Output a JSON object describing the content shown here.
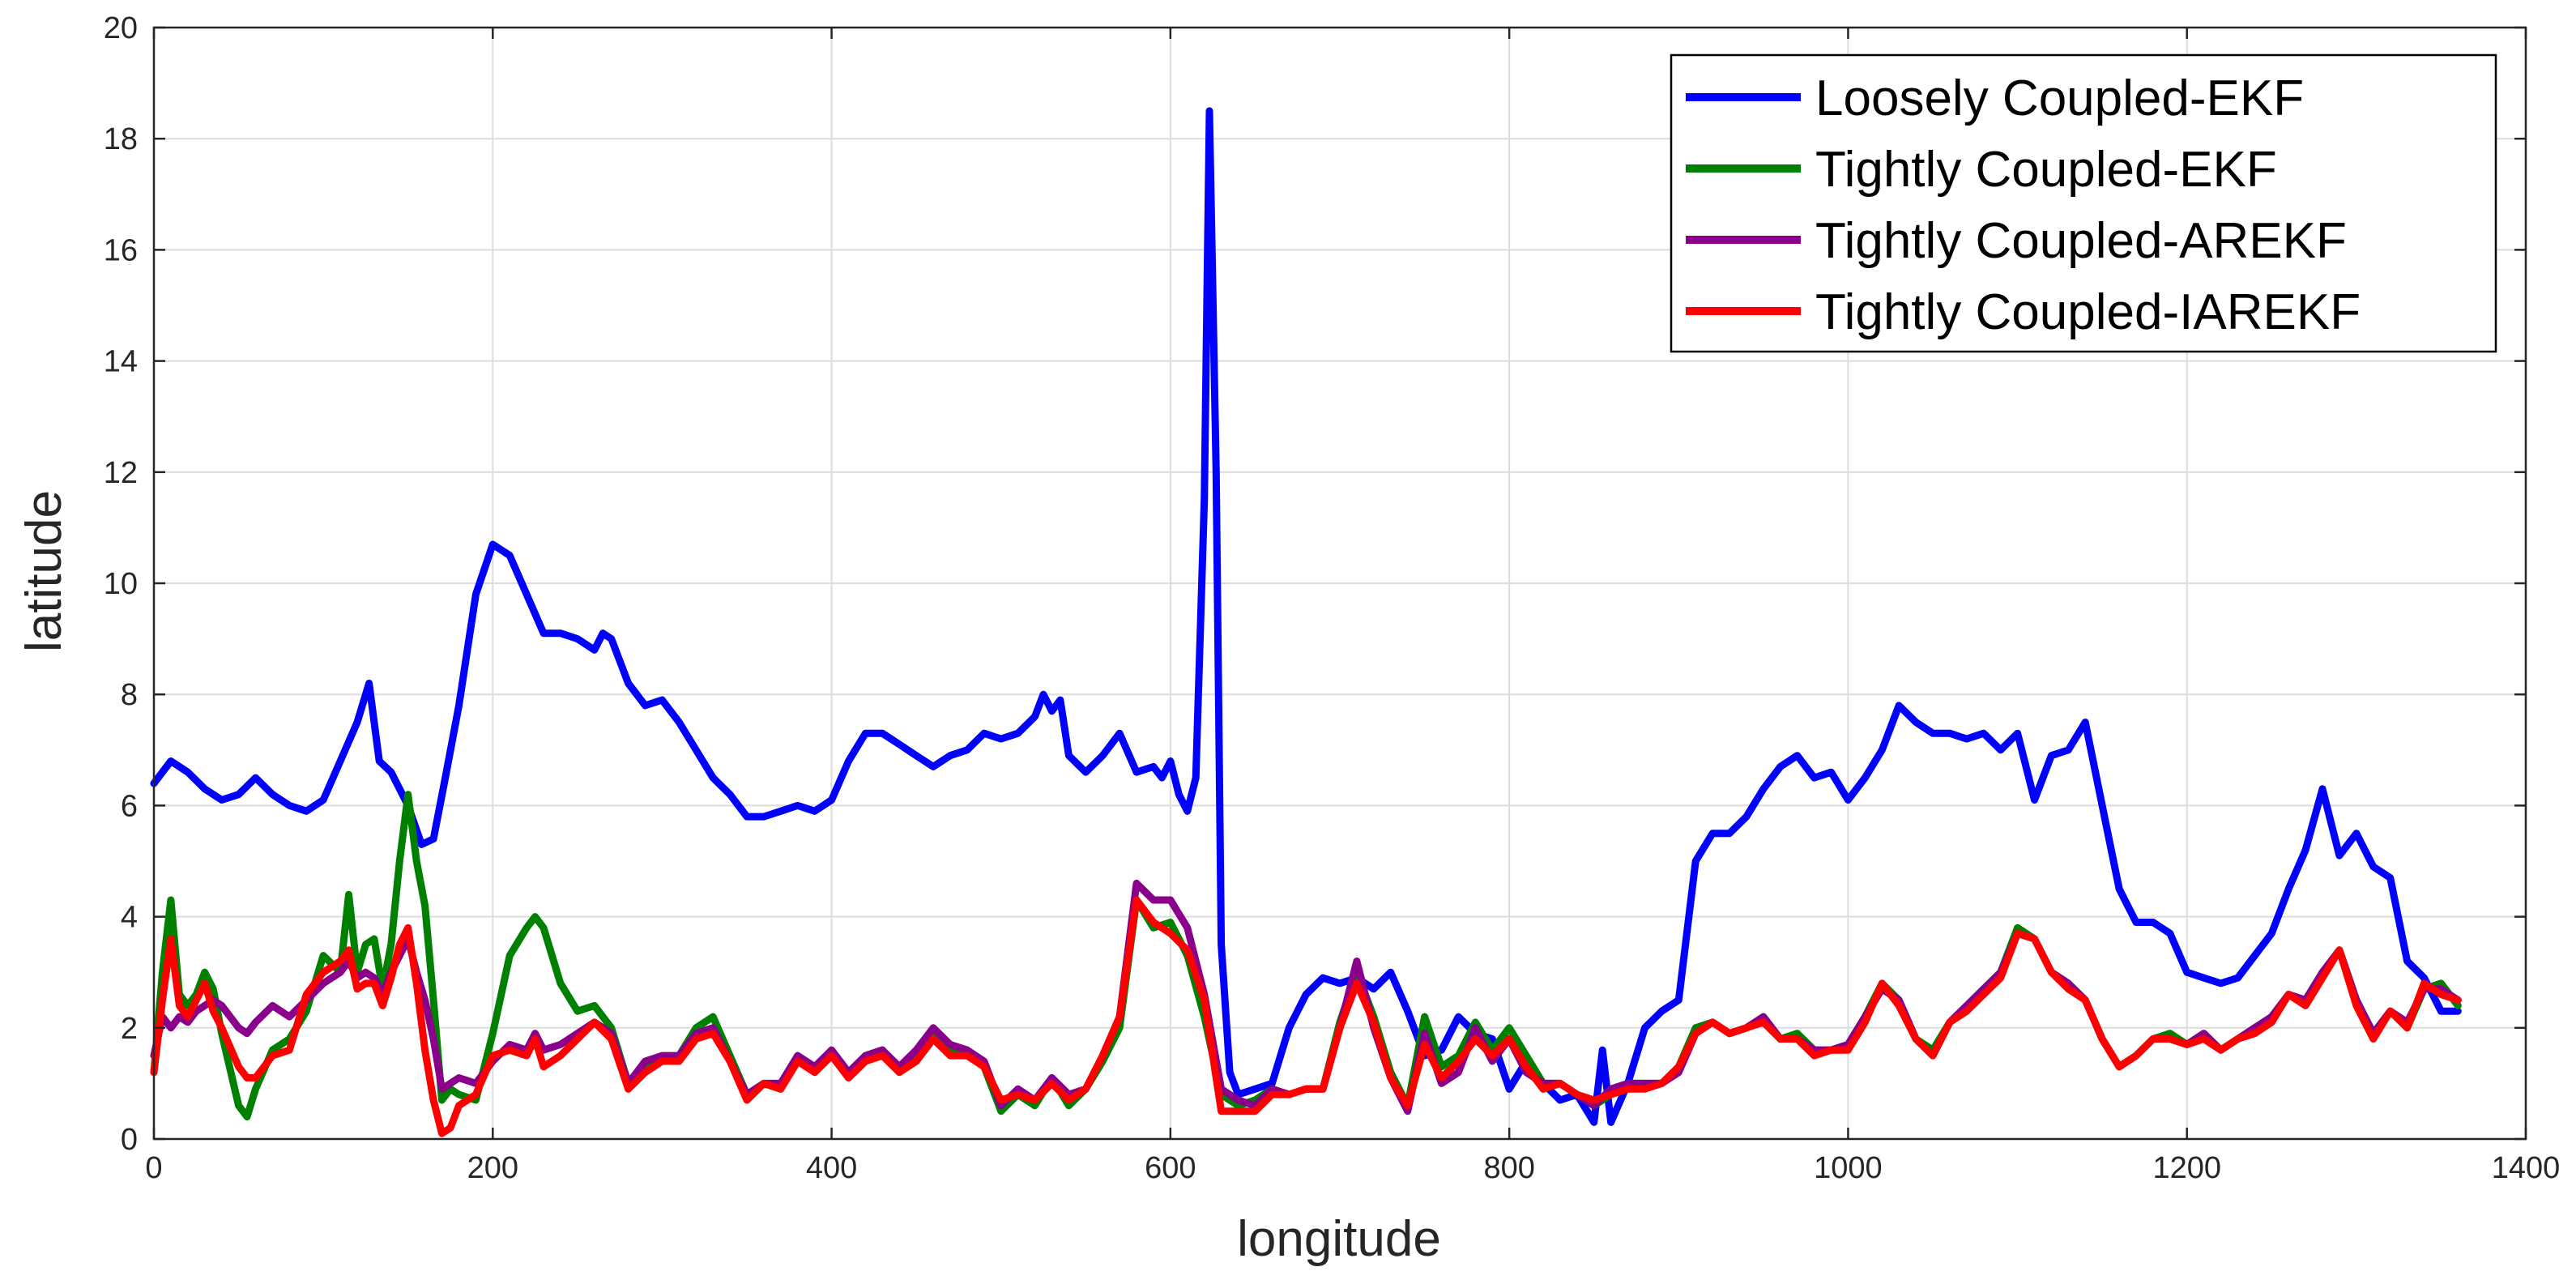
{
  "chart_data": {
    "type": "line",
    "title": "",
    "xlabel": "longitude",
    "ylabel": "latitude",
    "xlim": [
      0,
      1400
    ],
    "ylim": [
      0,
      20
    ],
    "xticks": [
      0,
      200,
      400,
      600,
      800,
      1000,
      1200,
      1400
    ],
    "yticks": [
      0,
      2,
      4,
      6,
      8,
      10,
      12,
      14,
      16,
      18,
      20
    ],
    "xtick_labels": [
      "0",
      "200",
      "400",
      "600",
      "800",
      "1000",
      "1200",
      "1400"
    ],
    "ytick_labels": [
      "0",
      "2",
      "4",
      "6",
      "8",
      "10",
      "12",
      "14",
      "16",
      "18",
      "20"
    ],
    "grid": true,
    "legend_position": "top-right",
    "series": [
      {
        "name": "Loosely Coupled-EKF",
        "color": "#0000ff",
        "x": [
          0,
          10,
          20,
          30,
          40,
          50,
          60,
          70,
          80,
          90,
          100,
          110,
          120,
          127,
          133,
          140,
          150,
          158,
          165,
          172,
          180,
          190,
          200,
          210,
          220,
          230,
          240,
          250,
          260,
          265,
          270,
          280,
          290,
          300,
          310,
          320,
          330,
          340,
          350,
          360,
          370,
          380,
          390,
          400,
          410,
          420,
          430,
          440,
          450,
          460,
          470,
          480,
          490,
          500,
          510,
          520,
          525,
          530,
          535,
          540,
          550,
          560,
          570,
          580,
          590,
          595,
          600,
          605,
          610,
          615,
          620,
          623,
          627,
          630,
          635,
          640,
          650,
          660,
          670,
          680,
          690,
          700,
          710,
          720,
          730,
          740,
          750,
          760,
          770,
          780,
          790,
          800,
          810,
          820,
          830,
          840,
          850,
          855,
          860,
          870,
          880,
          890,
          900,
          910,
          920,
          930,
          940,
          950,
          960,
          970,
          980,
          990,
          1000,
          1010,
          1020,
          1030,
          1040,
          1050,
          1060,
          1070,
          1080,
          1090,
          1100,
          1110,
          1120,
          1130,
          1140,
          1150,
          1160,
          1170,
          1180,
          1190,
          1200,
          1210,
          1220,
          1230,
          1240,
          1250,
          1260,
          1270,
          1280,
          1290,
          1300,
          1310,
          1320,
          1330,
          1340,
          1350,
          1360
        ],
        "y": [
          6.4,
          6.8,
          6.6,
          6.3,
          6.1,
          6.2,
          6.5,
          6.2,
          6.0,
          5.9,
          6.1,
          6.8,
          7.5,
          8.2,
          6.8,
          6.6,
          6.0,
          5.3,
          5.4,
          6.5,
          7.8,
          9.8,
          10.7,
          10.5,
          9.8,
          9.1,
          9.1,
          9.0,
          8.8,
          9.1,
          9.0,
          8.2,
          7.8,
          7.9,
          7.5,
          7.0,
          6.5,
          6.2,
          5.8,
          5.8,
          5.9,
          6.0,
          5.9,
          6.1,
          6.8,
          7.3,
          7.3,
          7.1,
          6.9,
          6.7,
          6.9,
          7.0,
          7.3,
          7.2,
          7.3,
          7.6,
          8.0,
          7.7,
          7.9,
          6.9,
          6.6,
          6.9,
          7.3,
          6.6,
          6.7,
          6.5,
          6.8,
          6.2,
          5.9,
          6.5,
          11.5,
          18.5,
          12.0,
          3.5,
          1.2,
          0.8,
          0.9,
          1.0,
          2.0,
          2.6,
          2.9,
          2.8,
          2.9,
          2.7,
          3.0,
          2.3,
          1.5,
          1.6,
          2.2,
          1.9,
          1.8,
          0.9,
          1.4,
          1.0,
          0.7,
          0.8,
          0.3,
          1.6,
          0.3,
          1.0,
          2.0,
          2.3,
          2.5,
          5.0,
          5.5,
          5.5,
          5.8,
          6.3,
          6.7,
          6.9,
          6.5,
          6.6,
          6.1,
          6.5,
          7.0,
          7.8,
          7.5,
          7.3,
          7.3,
          7.2,
          7.3,
          7.0,
          7.3,
          6.1,
          6.9,
          7.0,
          7.5,
          6.0,
          4.5,
          3.9,
          3.9,
          3.7,
          3.0,
          2.9,
          2.8,
          2.9,
          3.3,
          3.7,
          4.5,
          5.2,
          6.3,
          5.1,
          5.5,
          4.9,
          4.7,
          3.2,
          2.9,
          2.3,
          2.3
        ]
      },
      {
        "name": "Tightly Coupled-EKF",
        "color": "#008000",
        "x": [
          0,
          5,
          10,
          15,
          20,
          25,
          30,
          35,
          40,
          50,
          55,
          60,
          70,
          80,
          90,
          100,
          110,
          115,
          120,
          125,
          130,
          135,
          140,
          145,
          150,
          155,
          160,
          165,
          170,
          175,
          180,
          190,
          200,
          210,
          220,
          225,
          230,
          240,
          250,
          260,
          270,
          280,
          290,
          300,
          310,
          320,
          330,
          340,
          350,
          360,
          370,
          380,
          390,
          400,
          410,
          420,
          430,
          440,
          450,
          460,
          470,
          480,
          490,
          500,
          510,
          520,
          530,
          540,
          550,
          560,
          570,
          580,
          590,
          600,
          610,
          620,
          630,
          640,
          650,
          660,
          670,
          680,
          690,
          700,
          710,
          720,
          730,
          740,
          750,
          760,
          770,
          780,
          790,
          800,
          810,
          820,
          830,
          840,
          850,
          860,
          870,
          880,
          890,
          900,
          910,
          920,
          930,
          940,
          950,
          960,
          970,
          980,
          990,
          1000,
          1010,
          1020,
          1030,
          1040,
          1050,
          1060,
          1070,
          1080,
          1090,
          1100,
          1110,
          1120,
          1130,
          1140,
          1150,
          1160,
          1170,
          1180,
          1190,
          1200,
          1210,
          1220,
          1230,
          1240,
          1250,
          1260,
          1270,
          1280,
          1290,
          1300,
          1310,
          1320,
          1330,
          1340,
          1350,
          1360
        ],
        "y": [
          1.2,
          3.0,
          4.3,
          2.6,
          2.4,
          2.6,
          3.0,
          2.7,
          1.9,
          0.6,
          0.4,
          0.9,
          1.6,
          1.8,
          2.3,
          3.3,
          3.0,
          4.4,
          3.0,
          3.5,
          3.6,
          2.7,
          3.5,
          5.0,
          6.2,
          5.0,
          4.2,
          2.5,
          0.7,
          0.9,
          0.8,
          0.7,
          1.9,
          3.3,
          3.8,
          4.0,
          3.8,
          2.8,
          2.3,
          2.4,
          2.0,
          1.0,
          1.3,
          1.4,
          1.5,
          2.0,
          2.2,
          1.5,
          0.8,
          1.0,
          0.9,
          1.5,
          1.2,
          1.6,
          1.1,
          1.5,
          1.6,
          1.2,
          1.5,
          1.9,
          1.6,
          1.6,
          1.3,
          0.5,
          0.8,
          0.6,
          1.1,
          0.6,
          0.9,
          1.4,
          2.0,
          4.3,
          3.8,
          3.9,
          3.3,
          2.2,
          0.8,
          0.6,
          0.7,
          0.9,
          0.8,
          0.9,
          0.9,
          2.1,
          3.0,
          2.2,
          1.2,
          0.6,
          2.2,
          1.3,
          1.5,
          2.1,
          1.6,
          2.0,
          1.5,
          1.0,
          1.0,
          0.8,
          0.6,
          0.8,
          1.0,
          1.0,
          1.0,
          1.3,
          2.0,
          2.1,
          1.9,
          2.0,
          2.2,
          1.8,
          1.9,
          1.6,
          1.6,
          1.7,
          2.2,
          2.8,
          2.5,
          1.8,
          1.6,
          2.1,
          2.4,
          2.7,
          3.0,
          3.8,
          3.6,
          3.0,
          2.8,
          2.5,
          1.8,
          1.3,
          1.5,
          1.8,
          1.9,
          1.7,
          1.9,
          1.6,
          1.8,
          2.0,
          2.2,
          2.6,
          2.5,
          3.0,
          3.4,
          2.5,
          1.9,
          2.3,
          2.0,
          2.7,
          2.8,
          2.4
        ]
      },
      {
        "name": "Tightly Coupled-AREKF",
        "color": "#8b008b",
        "x": [
          0,
          5,
          10,
          15,
          20,
          25,
          30,
          35,
          40,
          50,
          55,
          60,
          70,
          80,
          90,
          100,
          110,
          115,
          120,
          125,
          130,
          135,
          140,
          145,
          150,
          155,
          160,
          165,
          170,
          175,
          180,
          190,
          200,
          210,
          220,
          225,
          230,
          240,
          250,
          260,
          270,
          280,
          290,
          300,
          310,
          320,
          330,
          340,
          350,
          360,
          370,
          380,
          390,
          400,
          410,
          420,
          430,
          440,
          450,
          460,
          470,
          480,
          490,
          500,
          510,
          520,
          530,
          540,
          550,
          560,
          570,
          580,
          590,
          600,
          610,
          620,
          630,
          640,
          650,
          660,
          670,
          680,
          690,
          700,
          710,
          720,
          730,
          740,
          750,
          760,
          770,
          780,
          790,
          800,
          810,
          820,
          830,
          840,
          850,
          860,
          870,
          880,
          890,
          900,
          910,
          920,
          930,
          940,
          950,
          960,
          970,
          980,
          990,
          1000,
          1010,
          1020,
          1030,
          1040,
          1050,
          1060,
          1070,
          1080,
          1090,
          1100,
          1110,
          1120,
          1130,
          1140,
          1150,
          1160,
          1170,
          1180,
          1190,
          1200,
          1210,
          1220,
          1230,
          1240,
          1250,
          1260,
          1270,
          1280,
          1290,
          1300,
          1310,
          1320,
          1330,
          1340,
          1350,
          1360
        ],
        "y": [
          1.5,
          2.2,
          2.0,
          2.2,
          2.1,
          2.3,
          2.4,
          2.5,
          2.4,
          2.0,
          1.9,
          2.1,
          2.4,
          2.2,
          2.5,
          2.8,
          3.0,
          3.2,
          2.9,
          3.0,
          2.9,
          2.6,
          3.0,
          3.3,
          3.6,
          3.0,
          2.5,
          1.8,
          0.9,
          1.0,
          1.1,
          1.0,
          1.4,
          1.7,
          1.6,
          1.9,
          1.6,
          1.7,
          1.9,
          2.1,
          1.9,
          1.0,
          1.4,
          1.5,
          1.5,
          1.9,
          2.0,
          1.4,
          0.8,
          1.0,
          1.0,
          1.5,
          1.3,
          1.6,
          1.2,
          1.5,
          1.6,
          1.3,
          1.6,
          2.0,
          1.7,
          1.6,
          1.4,
          0.6,
          0.9,
          0.7,
          1.1,
          0.8,
          0.9,
          1.5,
          2.2,
          4.6,
          4.3,
          4.3,
          3.8,
          2.6,
          0.9,
          0.7,
          0.6,
          0.9,
          0.8,
          0.9,
          0.9,
          2.0,
          3.2,
          2.0,
          1.1,
          0.5,
          1.9,
          1.0,
          1.2,
          2.0,
          1.4,
          1.8,
          1.2,
          1.0,
          1.0,
          0.8,
          0.6,
          0.9,
          1.0,
          1.0,
          1.0,
          1.2,
          1.9,
          2.1,
          1.9,
          2.0,
          2.2,
          1.8,
          1.8,
          1.6,
          1.6,
          1.7,
          2.2,
          2.7,
          2.5,
          1.8,
          1.5,
          2.1,
          2.4,
          2.7,
          3.0,
          3.7,
          3.6,
          3.0,
          2.8,
          2.5,
          1.8,
          1.3,
          1.5,
          1.8,
          1.8,
          1.7,
          1.9,
          1.6,
          1.8,
          2.0,
          2.2,
          2.6,
          2.5,
          3.0,
          3.4,
          2.5,
          1.9,
          2.3,
          2.1,
          2.7,
          2.7,
          2.5
        ]
      },
      {
        "name": "Tightly Coupled-IAREKF",
        "color": "#ff0000",
        "x": [
          0,
          5,
          10,
          15,
          20,
          25,
          30,
          35,
          40,
          50,
          55,
          60,
          70,
          80,
          90,
          100,
          110,
          115,
          120,
          125,
          130,
          135,
          140,
          145,
          150,
          155,
          160,
          165,
          170,
          175,
          180,
          190,
          200,
          210,
          220,
          225,
          230,
          240,
          250,
          260,
          270,
          280,
          290,
          300,
          310,
          320,
          330,
          340,
          350,
          360,
          370,
          380,
          390,
          400,
          410,
          420,
          430,
          440,
          450,
          460,
          470,
          480,
          490,
          500,
          510,
          520,
          530,
          540,
          550,
          560,
          570,
          580,
          590,
          600,
          610,
          620,
          630,
          640,
          650,
          660,
          670,
          680,
          690,
          700,
          710,
          720,
          730,
          740,
          750,
          760,
          770,
          780,
          790,
          800,
          810,
          820,
          830,
          840,
          850,
          860,
          870,
          880,
          890,
          900,
          910,
          920,
          930,
          940,
          950,
          960,
          970,
          980,
          990,
          1000,
          1010,
          1020,
          1030,
          1040,
          1050,
          1060,
          1070,
          1080,
          1090,
          1100,
          1110,
          1120,
          1130,
          1140,
          1150,
          1160,
          1170,
          1180,
          1190,
          1200,
          1210,
          1220,
          1230,
          1240,
          1250,
          1260,
          1270,
          1280,
          1290,
          1300,
          1310,
          1320,
          1330,
          1340,
          1350,
          1360
        ],
        "y": [
          1.2,
          2.5,
          3.6,
          2.4,
          2.2,
          2.5,
          2.8,
          2.3,
          2.0,
          1.3,
          1.1,
          1.1,
          1.5,
          1.6,
          2.6,
          3.0,
          3.2,
          3.4,
          2.7,
          2.8,
          2.8,
          2.4,
          2.9,
          3.5,
          3.8,
          2.8,
          1.6,
          0.7,
          0.1,
          0.2,
          0.6,
          0.8,
          1.5,
          1.6,
          1.5,
          1.8,
          1.3,
          1.5,
          1.8,
          2.1,
          1.8,
          0.9,
          1.2,
          1.4,
          1.4,
          1.8,
          1.9,
          1.4,
          0.7,
          1.0,
          0.9,
          1.4,
          1.2,
          1.5,
          1.1,
          1.4,
          1.5,
          1.2,
          1.4,
          1.8,
          1.5,
          1.5,
          1.3,
          0.7,
          0.8,
          0.7,
          1.0,
          0.7,
          0.9,
          1.5,
          2.2,
          4.3,
          3.9,
          3.7,
          3.4,
          2.5,
          0.5,
          0.5,
          0.5,
          0.8,
          0.8,
          0.9,
          0.9,
          2.0,
          2.8,
          2.1,
          1.1,
          0.6,
          1.7,
          1.1,
          1.4,
          1.8,
          1.5,
          1.8,
          1.3,
          0.9,
          1.0,
          0.8,
          0.7,
          0.8,
          0.9,
          0.9,
          1.0,
          1.3,
          1.9,
          2.1,
          1.9,
          2.0,
          2.1,
          1.8,
          1.8,
          1.5,
          1.6,
          1.6,
          2.1,
          2.8,
          2.4,
          1.8,
          1.5,
          2.1,
          2.3,
          2.6,
          2.9,
          3.7,
          3.6,
          3.0,
          2.7,
          2.5,
          1.8,
          1.3,
          1.5,
          1.8,
          1.8,
          1.7,
          1.8,
          1.6,
          1.8,
          1.9,
          2.1,
          2.6,
          2.4,
          2.9,
          3.4,
          2.4,
          1.8,
          2.3,
          2.0,
          2.8,
          2.6,
          2.5
        ]
      }
    ]
  }
}
